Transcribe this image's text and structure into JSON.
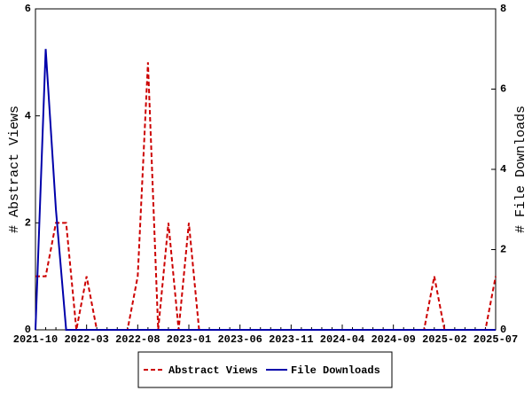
{
  "chart_data": {
    "type": "line",
    "categories": [
      "2021-10",
      null,
      null,
      null,
      null,
      "2022-03",
      null,
      null,
      null,
      null,
      "2022-08",
      null,
      null,
      null,
      null,
      "2023-01",
      null,
      null,
      null,
      null,
      "2023-06",
      null,
      null,
      null,
      null,
      "2023-11",
      null,
      null,
      null,
      null,
      "2024-04",
      null,
      null,
      null,
      null,
      "2024-09",
      null,
      null,
      null,
      null,
      "2025-02",
      null,
      null,
      null,
      null,
      "2025-07"
    ],
    "y_label": "# Abstract Views",
    "y2_label": "# File Downloads",
    "ylim": [
      0,
      6
    ],
    "yticks": [
      0,
      2,
      4,
      6
    ],
    "y2lim": [
      0,
      8
    ],
    "y2ticks": [
      0,
      2,
      4,
      6,
      8
    ],
    "series": [
      {
        "name": "Abstract Views",
        "color": "#cc0000",
        "dashed": true,
        "values": [
          1,
          1,
          2,
          2,
          0,
          1,
          0,
          0,
          0,
          0,
          1,
          5,
          0,
          2,
          0,
          2,
          0,
          0,
          0,
          0,
          0,
          0,
          0,
          0,
          0,
          0,
          0,
          0,
          0,
          0,
          0,
          0,
          0,
          0,
          0,
          0,
          0,
          0,
          0,
          1,
          0,
          0,
          0,
          0,
          0,
          1
        ]
      },
      {
        "name": "File Downloads",
        "color": "#0000aa",
        "axis": "y2",
        "values": [
          0,
          7,
          3,
          0,
          0,
          0,
          0,
          0,
          0,
          0,
          0,
          0,
          0,
          0,
          0,
          0,
          0,
          0,
          0,
          0,
          0,
          0,
          0,
          0,
          0,
          0,
          0,
          0,
          0,
          0,
          0,
          0,
          0,
          0,
          0,
          0,
          0,
          0,
          0,
          0,
          0,
          0,
          0,
          0,
          0,
          0
        ]
      }
    ]
  }
}
